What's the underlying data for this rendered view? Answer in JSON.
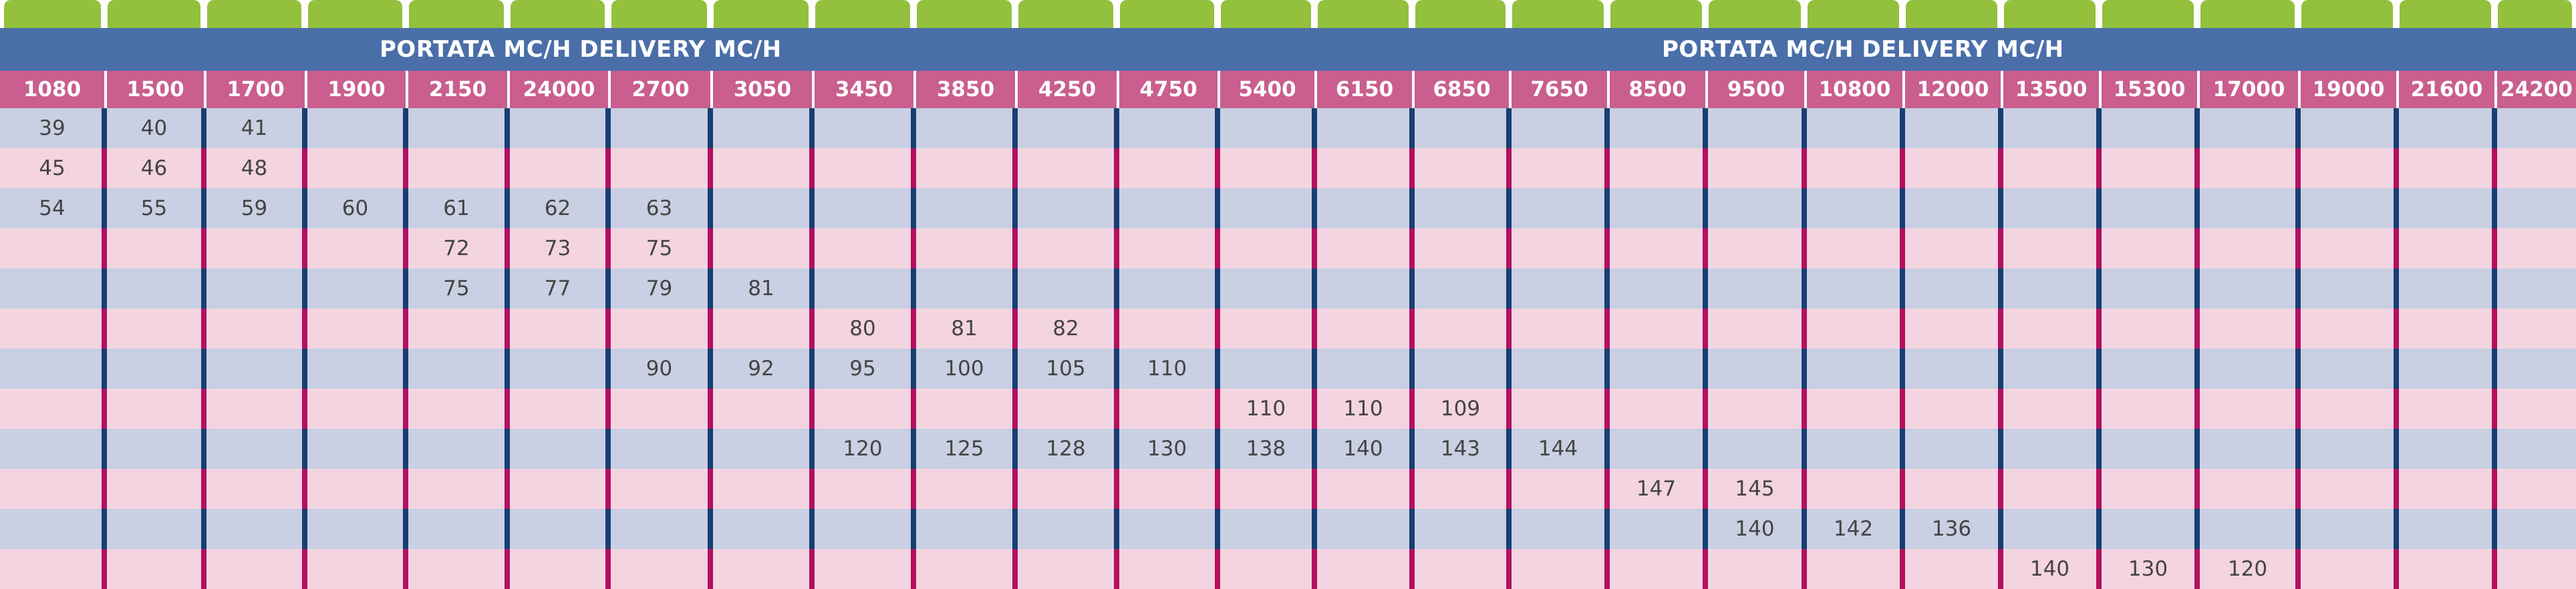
{
  "header": {
    "banner_labels": [
      "PORTATA MC/H DELIVERY MC/H",
      "PORTATA MC/H DELIVERY MC/H"
    ]
  },
  "columns": [
    "1080",
    "1500",
    "1700",
    "1900",
    "2150",
    "24000",
    "2700",
    "3050",
    "3450",
    "3850",
    "4250",
    "4750",
    "5400",
    "6150",
    "6850",
    "7650",
    "8500",
    "9500",
    "10800",
    "12000",
    "13500",
    "15300",
    "17000",
    "19000",
    "21600",
    "24200"
  ],
  "rows": [
    [
      "39",
      "40",
      "41",
      "",
      "",
      "",
      "",
      "",
      "",
      "",
      "",
      "",
      "",
      "",
      "",
      "",
      "",
      "",
      "",
      "",
      "",
      "",
      "",
      "",
      "",
      ""
    ],
    [
      "45",
      "46",
      "48",
      "",
      "",
      "",
      "",
      "",
      "",
      "",
      "",
      "",
      "",
      "",
      "",
      "",
      "",
      "",
      "",
      "",
      "",
      "",
      "",
      "",
      "",
      ""
    ],
    [
      "54",
      "55",
      "59",
      "60",
      "61",
      "62",
      "63",
      "",
      "",
      "",
      "",
      "",
      "",
      "",
      "",
      "",
      "",
      "",
      "",
      "",
      "",
      "",
      "",
      "",
      "",
      ""
    ],
    [
      "",
      "",
      "",
      "",
      "72",
      "73",
      "75",
      "",
      "",
      "",
      "",
      "",
      "",
      "",
      "",
      "",
      "",
      "",
      "",
      "",
      "",
      "",
      "",
      "",
      "",
      ""
    ],
    [
      "",
      "",
      "",
      "",
      "75",
      "77",
      "79",
      "81",
      "",
      "",
      "",
      "",
      "",
      "",
      "",
      "",
      "",
      "",
      "",
      "",
      "",
      "",
      "",
      "",
      "",
      ""
    ],
    [
      "",
      "",
      "",
      "",
      "",
      "",
      "",
      "",
      "80",
      "81",
      "82",
      "",
      "",
      "",
      "",
      "",
      "",
      "",
      "",
      "",
      "",
      "",
      "",
      "",
      "",
      ""
    ],
    [
      "",
      "",
      "",
      "",
      "",
      "",
      "90",
      "92",
      "95",
      "100",
      "105",
      "110",
      "",
      "",
      "",
      "",
      "",
      "",
      "",
      "",
      "",
      "",
      "",
      "",
      "",
      ""
    ],
    [
      "",
      "",
      "",
      "",
      "",
      "",
      "",
      "",
      "",
      "",
      "",
      "",
      "110",
      "110",
      "109",
      "",
      "",
      "",
      "",
      "",
      "",
      "",
      "",
      "",
      "",
      ""
    ],
    [
      "",
      "",
      "",
      "",
      "",
      "",
      "",
      "",
      "120",
      "125",
      "128",
      "130",
      "138",
      "140",
      "143",
      "144",
      "",
      "",
      "",
      "",
      "",
      "",
      "",
      "",
      "",
      ""
    ],
    [
      "",
      "",
      "",
      "",
      "",
      "",
      "",
      "",
      "",
      "",
      "",
      "",
      "",
      "",
      "",
      "",
      "147",
      "145",
      "",
      "",
      "",
      "",
      "",
      "",
      "",
      ""
    ],
    [
      "",
      "",
      "",
      "",
      "",
      "",
      "",
      "",
      "",
      "",
      "",
      "",
      "",
      "",
      "",
      "",
      "",
      "140",
      "142",
      "136",
      "",
      "",
      "",
      "",
      "",
      ""
    ],
    [
      "",
      "",
      "",
      "",
      "",
      "",
      "",
      "",
      "",
      "",
      "",
      "",
      "",
      "",
      "",
      "",
      "",
      "",
      "",
      "",
      "140",
      "130",
      "120",
      "",
      "",
      ""
    ]
  ],
  "colors": {
    "tab_green": "#93c03d",
    "banner_blue": "#4a6ea8",
    "header_pink": "#c95e8f",
    "row_blue": "#c9d0e3",
    "row_pink": "#f4d4e1",
    "line_navy": "#173f73",
    "line_magenta": "#b3105e",
    "text": "#444444"
  }
}
